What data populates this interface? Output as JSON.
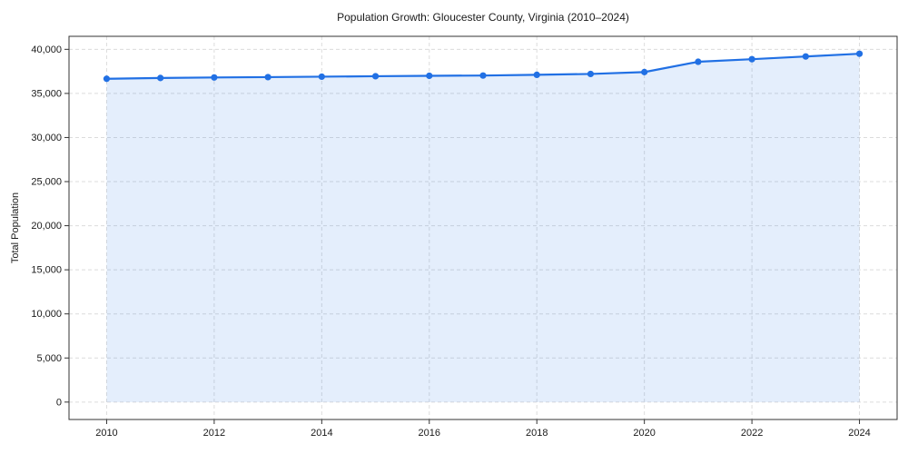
{
  "chart_data": {
    "type": "line",
    "title": "Population Growth: Gloucester County, Virginia (2010–2024)",
    "xlabel": "",
    "ylabel": "Total Population",
    "x": [
      2010,
      2011,
      2012,
      2013,
      2014,
      2015,
      2016,
      2017,
      2018,
      2019,
      2020,
      2021,
      2022,
      2023,
      2024
    ],
    "series": [
      {
        "name": "Total Population",
        "values": [
          36660,
          36750,
          36810,
          36850,
          36900,
          36950,
          37000,
          37030,
          37110,
          37210,
          37420,
          38590,
          38880,
          39190,
          39500
        ]
      }
    ],
    "xticks": [
      2010,
      2012,
      2014,
      2016,
      2018,
      2020,
      2022,
      2024
    ],
    "yticks": [
      0,
      5000,
      10000,
      15000,
      20000,
      25000,
      30000,
      35000,
      40000
    ],
    "xlim": [
      2009.3,
      2024.7
    ],
    "ylim": [
      -1975,
      41475
    ],
    "grid": true,
    "grid_style": "dashed",
    "legend": "none",
    "colors": {
      "line": "#2170e4",
      "marker": "#2170e4",
      "fill": "#2170e4",
      "fill_opacity": 0.12,
      "gridline": "#dcdcdc",
      "spine": "#333333",
      "text": "#1a1a1a",
      "plot_background": "#ffffff"
    },
    "marker_shape": "circle",
    "area_fill_to": 0
  }
}
